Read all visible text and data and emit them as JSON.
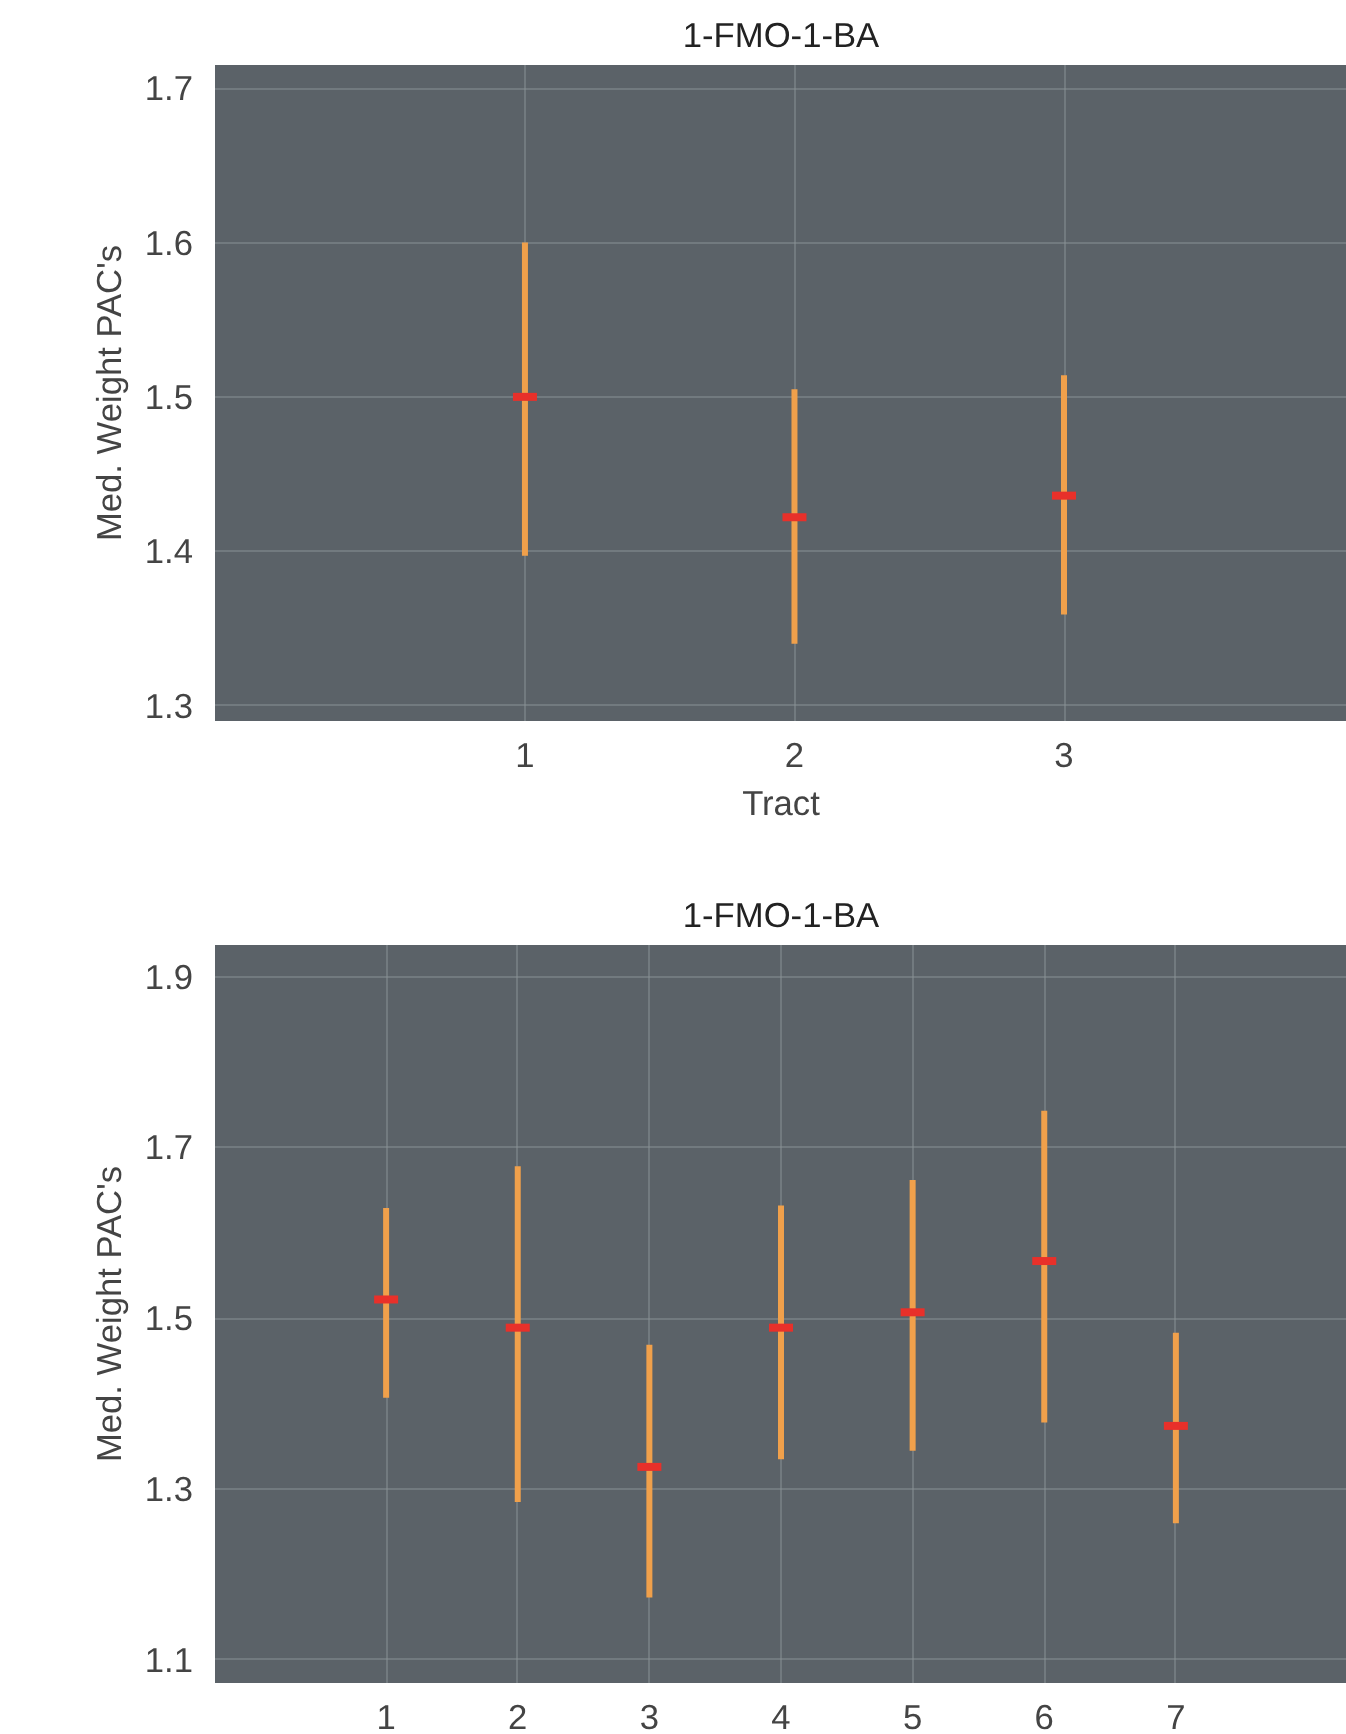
{
  "chart_data": [
    {
      "type": "scatter",
      "title": "1-FMO-1-BA",
      "xlabel": "Tract",
      "ylabel": "Med. Weight PAC's",
      "xlim": [
        -0.15,
        4.05
      ],
      "xticks": [
        1,
        2,
        3
      ],
      "ylim": [
        1.29,
        1.715
      ],
      "yticks": [
        1.3,
        1.4,
        1.5,
        1.6,
        1.7
      ],
      "grid": true,
      "series": [
        {
          "color": "#e8302a",
          "x": [
            1,
            2,
            3
          ],
          "values": [
            1.5,
            1.422,
            1.436
          ],
          "errors": [
            [
              1.397,
              1.6
            ],
            [
              1.34,
              1.505
            ],
            [
              1.359,
              1.514
            ]
          ]
        }
      ]
    },
    {
      "type": "scatter",
      "title": "1-FMO-1-BA",
      "ylabel": "Med. Weight PAC's",
      "xlim": [
        -0.3,
        8.3
      ],
      "xticks": [
        1,
        2,
        3,
        4,
        5,
        6,
        7
      ],
      "ylim": [
        1.073,
        1.937
      ],
      "yticks": [
        1.1,
        1.3,
        1.5,
        1.7,
        1.9
      ],
      "grid": true,
      "series": [
        {
          "color": "#e8302a",
          "x": [
            1,
            2,
            3,
            4,
            5,
            6,
            7
          ],
          "values": [
            1.522,
            1.489,
            1.326,
            1.489,
            1.507,
            1.567,
            1.374
          ],
          "errors": [
            [
              1.407,
              1.629
            ],
            [
              1.285,
              1.678
            ],
            [
              1.173,
              1.469
            ],
            [
              1.335,
              1.632
            ],
            [
              1.345,
              1.662
            ],
            [
              1.378,
              1.743
            ],
            [
              1.26,
              1.483
            ]
          ]
        }
      ]
    }
  ]
}
